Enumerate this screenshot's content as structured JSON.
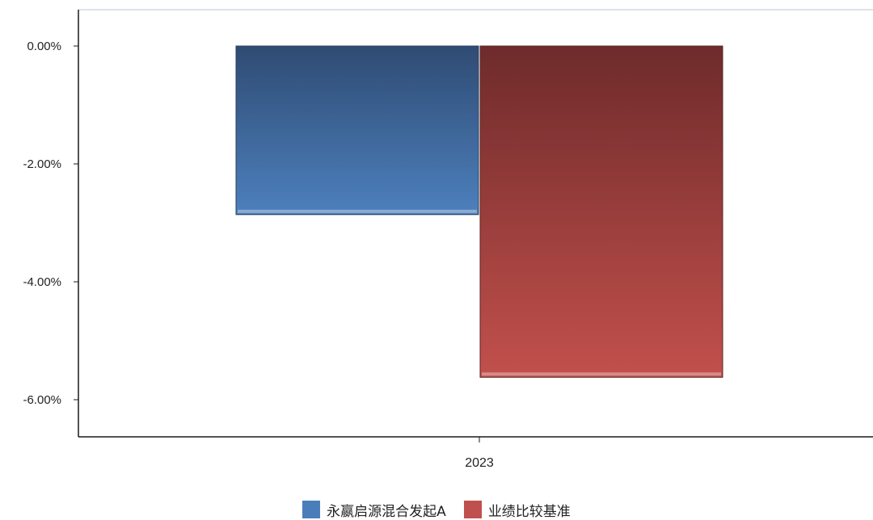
{
  "chart_data": {
    "type": "bar",
    "categories": [
      "2023"
    ],
    "series": [
      {
        "name": "永嬴启源混合发起A",
        "values": [
          -2.86
        ],
        "color": "#4a7ebb"
      },
      {
        "name": "业绩比较基准",
        "values": [
          -5.62
        ],
        "color": "#c0504d"
      }
    ],
    "y_ticks": [
      0,
      -2,
      -4,
      -6
    ],
    "y_tick_labels": [
      "0.00%",
      "-2.00%",
      "-4.00%",
      "-6.00%"
    ],
    "ylim": [
      -6.6,
      0.6
    ],
    "grid": false,
    "legend_position": "bottom",
    "title": "",
    "xlabel": "",
    "ylabel": ""
  },
  "legend": {
    "items": [
      {
        "label": "永嬴启源混合发起A",
        "color": "#4a7ebb"
      },
      {
        "label": "业绩比较基准",
        "color": "#c0504d"
      }
    ]
  }
}
